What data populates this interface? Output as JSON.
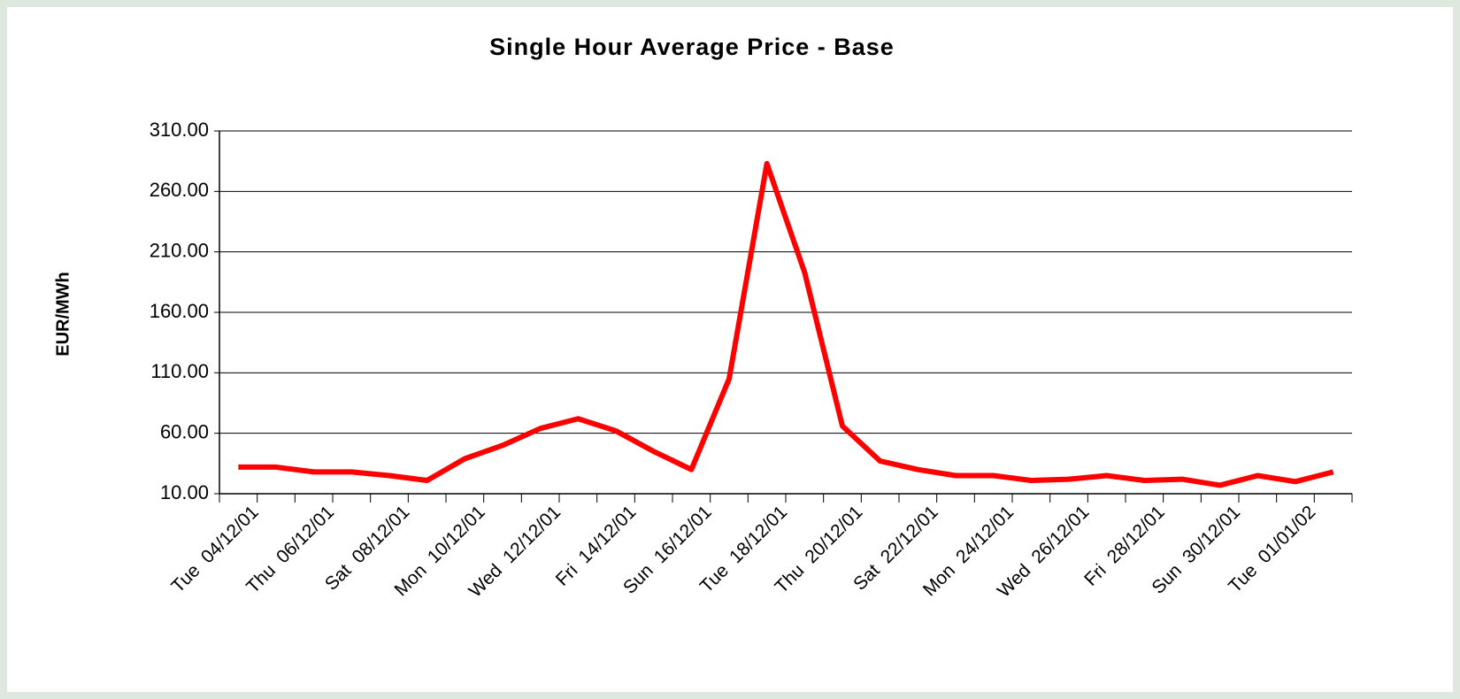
{
  "chart_data": {
    "type": "line",
    "title": "Single Hour Average Price - Base",
    "y_label": "EUR/MWh",
    "categories": [
      "Tue  04/12/01",
      null,
      "Thu  06/12/01",
      null,
      "Sat  08/12/01",
      null,
      "Mon  10/12/01",
      null,
      "Wed  12/12/01",
      null,
      "Fri  14/12/01",
      null,
      "Sun  16/12/01",
      null,
      "Tue  18/12/01",
      null,
      "Thu  20/12/01",
      null,
      "Sat  22/12/01",
      null,
      "Mon  24/12/01",
      null,
      "Wed  26/12/01",
      null,
      "Fri  28/12/01",
      null,
      "Sun  30/12/01",
      null,
      "Tue  01/01/02",
      null
    ],
    "series": [
      {
        "name": "Base",
        "color": "#ff0000",
        "values": [
          32,
          32,
          28,
          28,
          25,
          21,
          39,
          50,
          64,
          72,
          62,
          45,
          30,
          105,
          283,
          193,
          66,
          37,
          30,
          25,
          25,
          21,
          22,
          25,
          21,
          22,
          17,
          25,
          20,
          28
        ]
      }
    ],
    "ylim": [
      10,
      310
    ],
    "yticks": [
      {
        "value": 10,
        "label": "10.00"
      },
      {
        "value": 60,
        "label": "60.00"
      },
      {
        "value": 110,
        "label": "110.00"
      },
      {
        "value": 160,
        "label": "160.00"
      },
      {
        "value": 210,
        "label": "210.00"
      },
      {
        "value": 260,
        "label": "260.00"
      },
      {
        "value": 310,
        "label": "310.00"
      }
    ],
    "grid": true
  }
}
